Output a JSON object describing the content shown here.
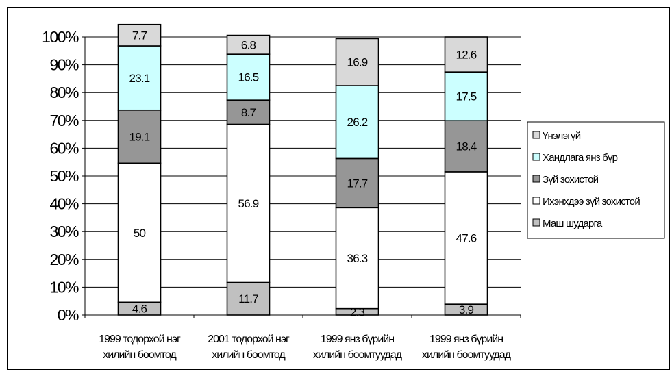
{
  "chart_data": {
    "type": "bar",
    "stacked": true,
    "percent": true,
    "title": "",
    "xlabel": "",
    "ylabel": "",
    "ylim": [
      0,
      100
    ],
    "y_ticks": [
      "0%",
      "10%",
      "20%",
      "30%",
      "40%",
      "50%",
      "60%",
      "70%",
      "80%",
      "90%",
      "100%"
    ],
    "categories": [
      [
        "1999 тодорхой нэг",
        "хилийн боомтод"
      ],
      [
        "2001 тодорхой нэг",
        "хилийн боомтод"
      ],
      [
        "1999 янз бүрийн",
        "хилийн боомтуудад"
      ],
      [
        "1999 янз бүрийн",
        "хилийн боомтуудад"
      ]
    ],
    "series": [
      {
        "name": "Маш шударга",
        "color": "#c0c0c0",
        "values": [
          4.6,
          11.7,
          2.3,
          3.9
        ]
      },
      {
        "name": "Ихэнхдээ зүй зохистой",
        "color": "#ffffff",
        "values": [
          50,
          56.9,
          36.3,
          47.6
        ]
      },
      {
        "name": "Зүй зохистой",
        "color": "#969696",
        "values": [
          19.1,
          8.7,
          17.7,
          18.4
        ]
      },
      {
        "name": "Хандлага янз бүр",
        "color": "#ccffff",
        "values": [
          23.1,
          16.5,
          26.2,
          17.5
        ]
      },
      {
        "name": "Үнэлэгүй",
        "color": "#d9d9d9",
        "values": [
          7.7,
          6.8,
          16.9,
          12.6
        ]
      }
    ],
    "legend_order": [
      "Үнэлэгүй",
      "Хандлага янз бүр",
      "Зүй зохистой",
      "Ихэнхдээ зүй зохистой",
      "Маш шударга"
    ],
    "legend_position": "right",
    "grid": true
  }
}
